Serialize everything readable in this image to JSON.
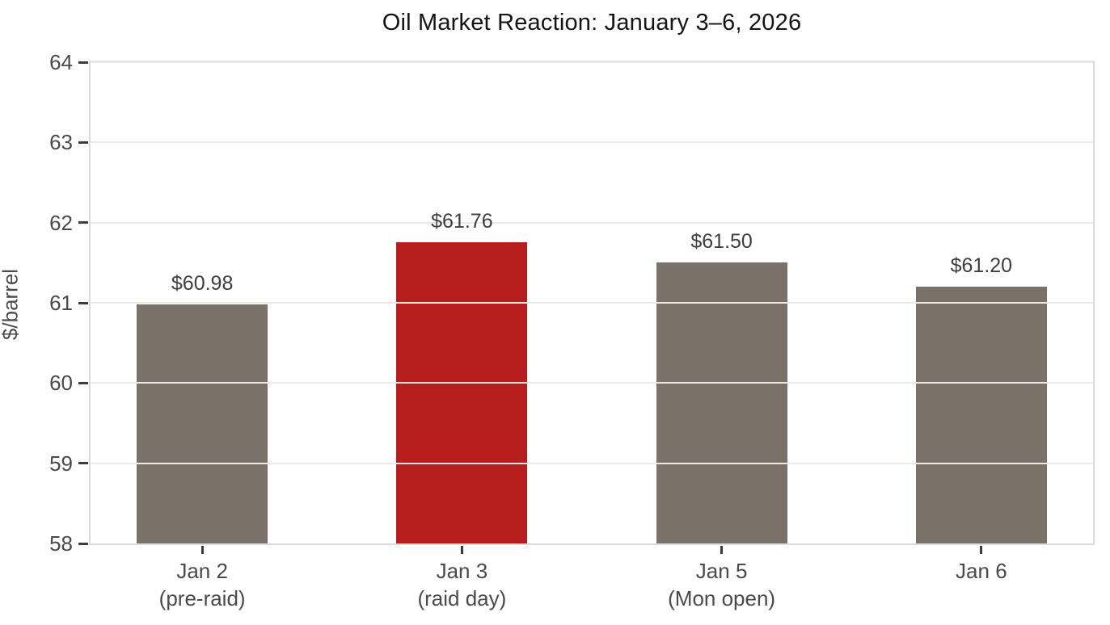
{
  "chart_data": {
    "type": "bar",
    "title": "Oil Market Reaction: January 3–6, 2026",
    "xlabel": "",
    "ylabel": "$/barrel",
    "ylim": [
      58,
      64
    ],
    "yticks": [
      58,
      59,
      60,
      61,
      62,
      63,
      64
    ],
    "grid": true,
    "legend": false,
    "categories": [
      [
        "Jan 2",
        "(pre-raid)"
      ],
      [
        "Jan 3",
        "(raid day)"
      ],
      [
        "Jan 5",
        "(Mon open)"
      ],
      [
        "Jan 6"
      ]
    ],
    "values": [
      60.98,
      61.76,
      61.5,
      61.2
    ],
    "value_labels": [
      "$60.98",
      "$61.76",
      "$61.50",
      "$61.20"
    ],
    "bar_colors": [
      "#7a7269",
      "#b71d1d",
      "#7a7269",
      "#7a7269"
    ],
    "highlight_index": 1,
    "colors": {
      "bar_default": "#7a7269",
      "bar_highlight": "#b71d1d",
      "grid": "#ecebe8",
      "spine": "#dedcda",
      "tick_mark": "#3c3c3c",
      "tick_label": "#4a4a4a",
      "value_label": "#3e3e3e",
      "title": "#141414",
      "background": "#ffffff"
    }
  }
}
